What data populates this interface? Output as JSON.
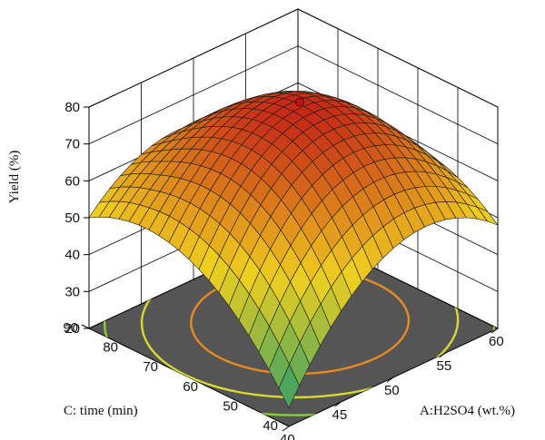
{
  "chart_data": {
    "type": "surface3d",
    "title": "",
    "zlabel": "Yield (%)",
    "xlabel": "A:H2SO4 (wt.%)",
    "ylabel": "C: time (min)",
    "z_ticks": [
      "20",
      "30",
      "40",
      "50",
      "60",
      "70",
      "80"
    ],
    "x_ticks": [
      "40",
      "45",
      "50",
      "55",
      "60"
    ],
    "y_ticks": [
      "40",
      "50",
      "60",
      "70",
      "80",
      "90"
    ],
    "zlim": [
      20,
      80
    ],
    "xlim": [
      40,
      60
    ],
    "ylim": [
      40,
      90
    ],
    "grid": true,
    "surface_grid_points": 21,
    "corner_values": [
      {
        "A": 40,
        "C": 40,
        "yield": 25
      },
      {
        "A": 60,
        "C": 40,
        "yield": 48
      },
      {
        "A": 40,
        "C": 90,
        "yield": 50
      },
      {
        "A": 60,
        "C": 90,
        "yield": 38
      }
    ],
    "edge_midpoints": [
      {
        "A": 50,
        "C": 40,
        "yield": 55
      },
      {
        "A": 50,
        "C": 90,
        "yield": 62
      },
      {
        "A": 40,
        "C": 65,
        "yield": 52
      },
      {
        "A": 60,
        "C": 65,
        "yield": 58
      }
    ],
    "optimum": {
      "A": 51,
      "C": 66,
      "yield": 79
    },
    "contour_levels": [
      30,
      40,
      50,
      60,
      70
    ],
    "colors": {
      "high": "#c62818",
      "mid": "#f0d020",
      "low": "#2e9e6a",
      "floor": "#555555",
      "optimum_marker": "#c0141a"
    }
  }
}
